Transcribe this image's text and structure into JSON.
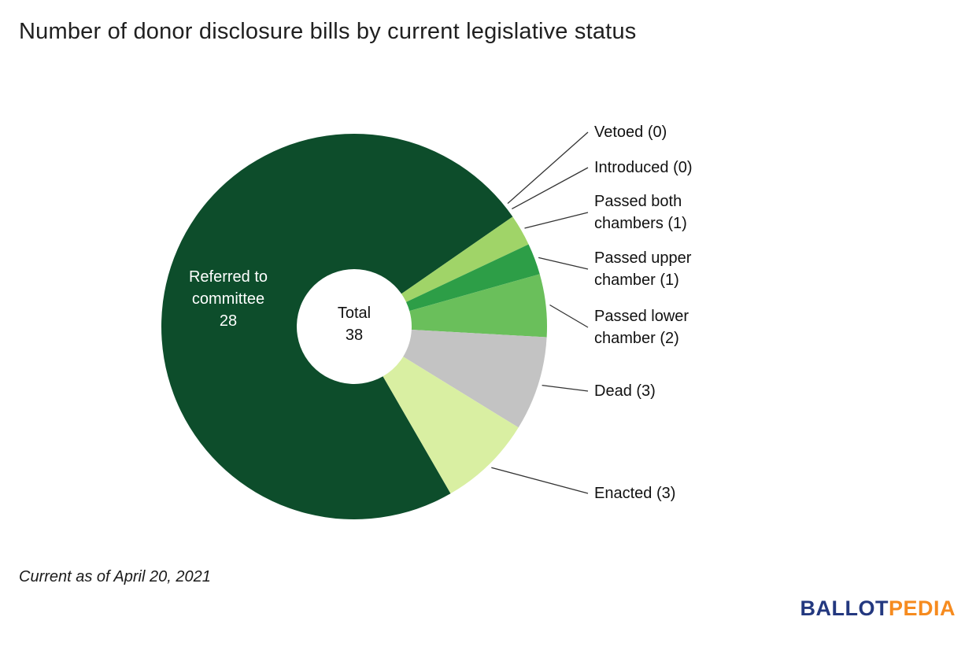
{
  "title": "Number of donor disclosure bills by current legislative status",
  "footnote": "Current as of April 20, 2021",
  "logo": {
    "part1": "BALLOT",
    "part2": "PEDIA",
    "part1_color": "#23387f",
    "part2_color": "#f68b1f"
  },
  "chart_data": {
    "type": "pie",
    "subtype": "donut",
    "title": "Number of donor disclosure bills by current legislative status",
    "total_label": "Total",
    "total": 38,
    "labels_position": "right-callouts",
    "slices": [
      {
        "label": "Referred to committee",
        "value": 28,
        "color": "#0d4d2b",
        "label_inside": true
      },
      {
        "label": "Vetoed",
        "value": 0,
        "color": "#0d4d2b",
        "display": "Vetoed (0)"
      },
      {
        "label": "Introduced",
        "value": 0,
        "color": "#0d4d2b",
        "display": "Introduced (0)"
      },
      {
        "label": "Passed both chambers",
        "value": 1,
        "color": "#a0d468",
        "display": "Passed both chambers (1)"
      },
      {
        "label": "Passed upper chamber",
        "value": 1,
        "color": "#2d9e47",
        "display": "Passed upper chamber (1)"
      },
      {
        "label": "Passed lower chamber",
        "value": 2,
        "color": "#6abf5b",
        "display": "Passed lower chamber (2)"
      },
      {
        "label": "Dead",
        "value": 3,
        "color": "#c3c3c3",
        "display": "Dead (3)"
      },
      {
        "label": "Enacted",
        "value": 3,
        "color": "#d9efa2",
        "display": "Enacted (3)"
      }
    ]
  }
}
